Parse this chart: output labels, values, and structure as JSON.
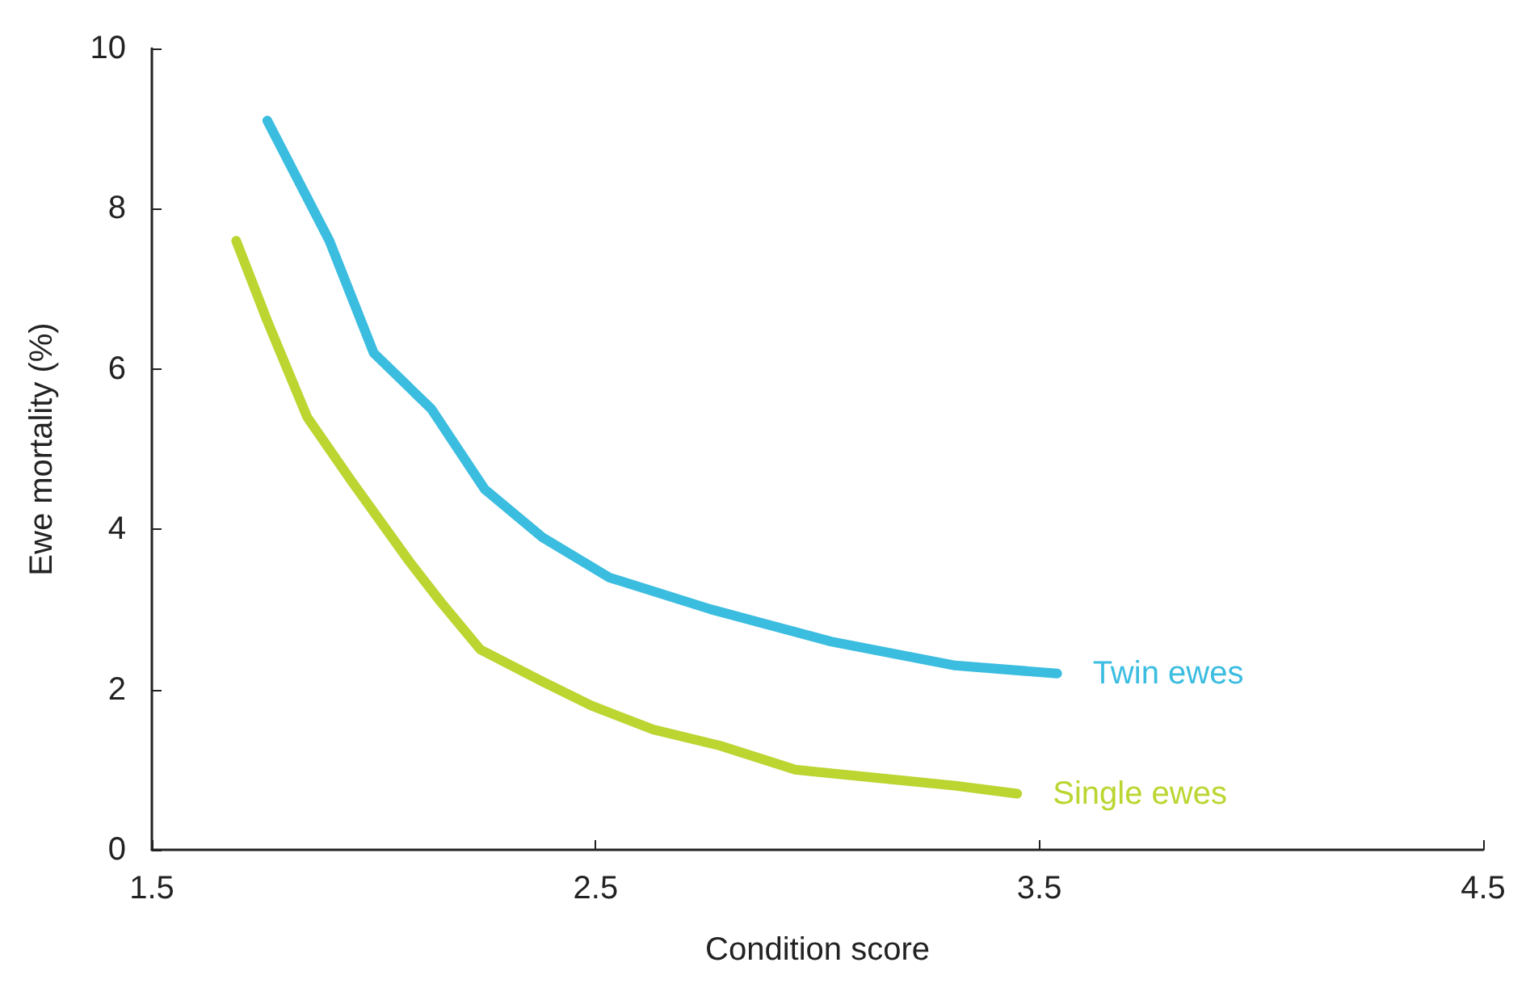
{
  "chart_data": {
    "type": "line",
    "xlabel": "Condition score",
    "ylabel": "Ewe mortality (%)",
    "xlim": [
      1.5,
      4.5
    ],
    "ylim": [
      0,
      10
    ],
    "xticks": [
      1.5,
      2.5,
      3.5,
      4.5
    ],
    "yticks": [
      0,
      2,
      4,
      6,
      8,
      10
    ],
    "grid": false,
    "legend": false,
    "marker": "none",
    "series": [
      {
        "name": "Twin ewes",
        "color": "#3bbde0",
        "x": [
          1.76,
          1.9,
          2.0,
          2.13,
          2.25,
          2.38,
          2.53,
          2.76,
          3.03,
          3.31,
          3.54
        ],
        "values": [
          9.1,
          7.6,
          6.2,
          5.5,
          4.5,
          3.9,
          3.4,
          3.0,
          2.6,
          2.3,
          2.2
        ]
      },
      {
        "name": "Single ewes",
        "color": "#bcd530",
        "x": [
          1.69,
          1.76,
          1.85,
          1.95,
          2.08,
          2.15,
          2.24,
          2.38,
          2.49,
          2.63,
          2.78,
          2.95,
          3.13,
          3.31,
          3.45
        ],
        "values": [
          7.6,
          6.6,
          5.4,
          4.6,
          3.6,
          3.1,
          2.5,
          2.1,
          1.8,
          1.5,
          1.3,
          1.0,
          0.9,
          0.8,
          0.7
        ]
      }
    ]
  }
}
